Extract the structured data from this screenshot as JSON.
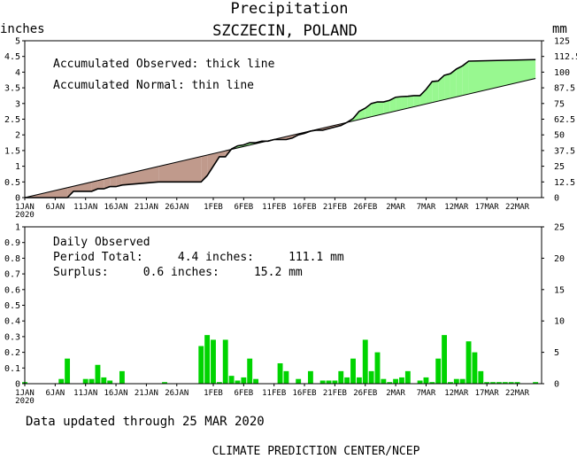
{
  "title": "Precipitation",
  "subtitle": "SZCZECIN, POLAND",
  "top_left_unit": "inches",
  "top_right_unit": "mm",
  "footer_updated": "Data updated through 25 MAR 2020",
  "footer_credit": "CLIMATE PREDICTION CENTER/NCEP",
  "colors": {
    "deficit_fill": "#c09a8c",
    "surplus_fill": "#98f890",
    "bar_fill": "#00d400",
    "line": "#000000"
  },
  "chart_data": [
    {
      "type": "area",
      "name": "accumulated",
      "annotations": [
        "Accumulated Observed: thick line",
        "Accumulated Normal: thin line"
      ],
      "x_day_range": [
        0,
        85
      ],
      "ylim_inches": [
        0,
        5
      ],
      "ylim_mm": [
        0,
        125
      ],
      "y_ticks_inches": [
        "0",
        "0.5",
        "1",
        "1.5",
        "2",
        "2.5",
        "3",
        "3.5",
        "4",
        "4.5",
        "5"
      ],
      "y_ticks_mm": [
        "0",
        "12.5",
        "25",
        "37.5",
        "50",
        "62.5",
        "75",
        "87.5",
        "100",
        "112.5",
        "125"
      ],
      "x_tick_labels": [
        "1JAN",
        "6JAN",
        "11JAN",
        "16JAN",
        "21JAN",
        "26JAN",
        "1FEB",
        "6FEB",
        "11FEB",
        "16FEB",
        "21FEB",
        "26FEB",
        "2MAR",
        "7MAR",
        "12MAR",
        "17MAR",
        "22MAR"
      ],
      "x_tick_days": [
        0,
        5,
        10,
        15,
        20,
        25,
        31,
        36,
        41,
        46,
        51,
        56,
        61,
        66,
        71,
        76,
        81
      ],
      "x_year_label": "2020",
      "normal": {
        "x": [
          0,
          84
        ],
        "y": [
          0,
          3.8
        ]
      },
      "observed": {
        "x": [
          0,
          7,
          8,
          11,
          12,
          13,
          14,
          15,
          16,
          22,
          29,
          30,
          31,
          32,
          33,
          34,
          35,
          36,
          37,
          38,
          39,
          40,
          41,
          42,
          43,
          44,
          45,
          46,
          47,
          48,
          49,
          50,
          51,
          52,
          53,
          54,
          55,
          56,
          57,
          58,
          59,
          60,
          61,
          62,
          63,
          64,
          65,
          66,
          67,
          68,
          69,
          70,
          71,
          72,
          73,
          84
        ],
        "y": [
          0,
          0,
          0.2,
          0.2,
          0.28,
          0.28,
          0.35,
          0.35,
          0.4,
          0.5,
          0.5,
          0.7,
          1.0,
          1.3,
          1.3,
          1.55,
          1.65,
          1.68,
          1.75,
          1.75,
          1.8,
          1.8,
          1.85,
          1.85,
          1.85,
          1.9,
          2.0,
          2.05,
          2.12,
          2.15,
          2.15,
          2.2,
          2.25,
          2.3,
          2.4,
          2.52,
          2.75,
          2.85,
          3.0,
          3.05,
          3.05,
          3.1,
          3.2,
          3.22,
          3.23,
          3.25,
          3.25,
          3.45,
          3.7,
          3.72,
          3.9,
          3.95,
          4.1,
          4.2,
          4.35,
          4.4
        ]
      }
    },
    {
      "type": "bar",
      "name": "daily",
      "annotations": [
        "Daily Observed",
        "Period Total:     4.4 inches:     111.1 mm",
        "Surplus:     0.6 inches:     15.2 mm"
      ],
      "ylim_inches": [
        0,
        1
      ],
      "ylim_mm": [
        0,
        25
      ],
      "y_ticks_inches": [
        "0",
        "0.1",
        "0.2",
        "0.3",
        "0.4",
        "0.5",
        "0.6",
        "0.7",
        "0.8",
        "0.9",
        "1"
      ],
      "y_ticks_mm": [
        "0",
        "5",
        "10",
        "15",
        "20",
        "25"
      ],
      "x_tick_labels": [
        "1JAN",
        "6JAN",
        "11JAN",
        "16JAN",
        "21JAN",
        "26JAN",
        "1FEB",
        "6FEB",
        "11FEB",
        "16FEB",
        "21FEB",
        "26FEB",
        "2MAR",
        "7MAR",
        "12MAR",
        "17MAR",
        "22MAR"
      ],
      "x_tick_days": [
        0,
        5,
        10,
        15,
        20,
        25,
        31,
        36,
        41,
        46,
        51,
        56,
        61,
        66,
        71,
        76,
        81
      ],
      "x_year_label": "2020",
      "days": [
        0,
        6,
        7,
        10,
        11,
        12,
        13,
        14,
        16,
        23,
        29,
        30,
        31,
        32,
        33,
        34,
        35,
        36,
        37,
        38,
        42,
        43,
        45,
        47,
        49,
        50,
        51,
        52,
        53,
        54,
        55,
        56,
        57,
        58,
        59,
        60,
        61,
        62,
        63,
        65,
        66,
        67,
        68,
        69,
        70,
        71,
        72,
        73,
        74,
        75,
        76,
        77,
        78,
        79,
        80,
        81,
        84
      ],
      "values": [
        0.01,
        0.03,
        0.16,
        0.03,
        0.03,
        0.12,
        0.04,
        0.02,
        0.08,
        0.01,
        0.24,
        0.31,
        0.28,
        0.01,
        0.28,
        0.05,
        0.02,
        0.04,
        0.16,
        0.03,
        0.13,
        0.08,
        0.03,
        0.08,
        0.02,
        0.02,
        0.02,
        0.08,
        0.04,
        0.16,
        0.04,
        0.28,
        0.08,
        0.2,
        0.03,
        0.01,
        0.03,
        0.04,
        0.08,
        0.02,
        0.04,
        0.01,
        0.16,
        0.31,
        0.01,
        0.03,
        0.03,
        0.27,
        0.2,
        0.08,
        0.01,
        0.01,
        0.01,
        0.01,
        0.01,
        0.01,
        0.01
      ]
    }
  ]
}
